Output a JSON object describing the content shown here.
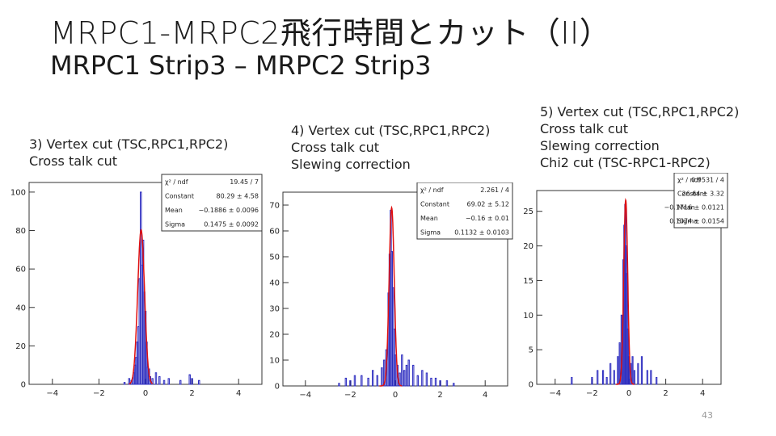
{
  "slide": {
    "title": "MRPC1-MRPC2飛行時間とカット（II）",
    "subtitle": "MRPC1 Strip3 – MRPC2 Strip3",
    "page_number": "43"
  },
  "panels": [
    {
      "caption": "3) Vertex cut (TSC,RPC1,RPC2)\nCross talk cut",
      "stats": [
        [
          "χ² / ndf",
          "19.45 / 7"
        ],
        [
          "Constant",
          "80.29 ± 4.58"
        ],
        [
          "Mean",
          "−0.1886 ± 0.0096"
        ],
        [
          "Sigma",
          "0.1475 ± 0.0092"
        ]
      ]
    },
    {
      "caption": "4) Vertex cut (TSC,RPC1,RPC2)\nCross talk cut\nSlewing correction",
      "stats": [
        [
          "χ² / ndf",
          "2.261 / 4"
        ],
        [
          "Constant",
          "69.02 ± 5.12"
        ],
        [
          "Mean",
          "−0.16 ± 0.01"
        ],
        [
          "Sigma",
          "0.1132 ± 0.0103"
        ]
      ]
    },
    {
      "caption": "5) Vertex cut (TSC,RPC1,RPC2)\nCross talk cut\nSlewing correction\nChi2 cut (TSC-RPC1-RPC2)",
      "stats": [
        [
          "χ² / ndf",
          "0.9531 / 4"
        ],
        [
          "Constant",
          "26.64 ± 3.32"
        ],
        [
          "Mean",
          "−0.1716 ± 0.0121"
        ],
        [
          "Sigma",
          "0.1074 ± 0.0154"
        ]
      ]
    }
  ],
  "colors": {
    "histogram": "#2b2bbf",
    "fit": "#e01010",
    "frame": "#333333"
  },
  "chart_data": [
    {
      "type": "line",
      "xlim": [
        -5,
        5
      ],
      "ylim": [
        0,
        105
      ],
      "xticks": [
        -4,
        -2,
        0,
        2,
        4
      ],
      "yticks": [
        0,
        20,
        40,
        60,
        80,
        100
      ],
      "bins": [
        [
          -0.9,
          1
        ],
        [
          -0.7,
          3
        ],
        [
          -0.6,
          2
        ],
        [
          -0.5,
          6
        ],
        [
          -0.45,
          10
        ],
        [
          -0.4,
          14
        ],
        [
          -0.35,
          22
        ],
        [
          -0.3,
          30
        ],
        [
          -0.25,
          55
        ],
        [
          -0.2,
          100
        ],
        [
          -0.15,
          62
        ],
        [
          -0.1,
          75
        ],
        [
          -0.05,
          48
        ],
        [
          0.0,
          38
        ],
        [
          0.05,
          22
        ],
        [
          0.1,
          9
        ],
        [
          0.15,
          8
        ],
        [
          0.2,
          4
        ],
        [
          0.3,
          3
        ],
        [
          0.45,
          6
        ],
        [
          0.6,
          4
        ],
        [
          0.8,
          2
        ],
        [
          1.0,
          3
        ],
        [
          1.5,
          2
        ],
        [
          1.9,
          5
        ],
        [
          2.0,
          3
        ],
        [
          2.3,
          2
        ]
      ],
      "fit": {
        "constant": 80.29,
        "mean": -0.1886,
        "sigma": 0.1475,
        "range": [
          -0.7,
          0.3
        ]
      }
    },
    {
      "type": "line",
      "xlim": [
        -5,
        5
      ],
      "ylim": [
        0,
        75
      ],
      "xticks": [
        -4,
        -2,
        0,
        2,
        4
      ],
      "yticks": [
        0,
        10,
        20,
        30,
        40,
        50,
        60,
        70
      ],
      "bins": [
        [
          -2.5,
          1
        ],
        [
          -2.2,
          3
        ],
        [
          -2.0,
          2
        ],
        [
          -1.8,
          4
        ],
        [
          -1.5,
          4
        ],
        [
          -1.2,
          3
        ],
        [
          -1.0,
          6
        ],
        [
          -0.8,
          4
        ],
        [
          -0.6,
          7
        ],
        [
          -0.5,
          10
        ],
        [
          -0.4,
          14
        ],
        [
          -0.3,
          36
        ],
        [
          -0.25,
          51
        ],
        [
          -0.2,
          68
        ],
        [
          -0.15,
          52
        ],
        [
          -0.1,
          38
        ],
        [
          -0.05,
          22
        ],
        [
          0.0,
          12
        ],
        [
          0.1,
          8
        ],
        [
          0.2,
          5
        ],
        [
          0.3,
          12
        ],
        [
          0.4,
          6
        ],
        [
          0.5,
          8
        ],
        [
          0.6,
          10
        ],
        [
          0.8,
          8
        ],
        [
          1.0,
          4
        ],
        [
          1.2,
          6
        ],
        [
          1.4,
          5
        ],
        [
          1.6,
          3
        ],
        [
          1.8,
          3
        ],
        [
          2.0,
          2
        ],
        [
          2.3,
          2
        ],
        [
          2.6,
          1
        ]
      ],
      "fit": {
        "constant": 69.02,
        "mean": -0.16,
        "sigma": 0.1132,
        "range": [
          -0.7,
          0.3
        ]
      }
    },
    {
      "type": "line",
      "xlim": [
        -5,
        5
      ],
      "ylim": [
        0,
        28
      ],
      "xticks": [
        -4,
        -2,
        0,
        2,
        4
      ],
      "yticks": [
        0,
        5,
        10,
        15,
        20,
        25
      ],
      "bins": [
        [
          -3.1,
          1
        ],
        [
          -2.0,
          1
        ],
        [
          -1.7,
          2
        ],
        [
          -1.4,
          2
        ],
        [
          -1.2,
          1
        ],
        [
          -1.0,
          3
        ],
        [
          -0.8,
          2
        ],
        [
          -0.6,
          4
        ],
        [
          -0.5,
          6
        ],
        [
          -0.4,
          10
        ],
        [
          -0.3,
          18
        ],
        [
          -0.25,
          23
        ],
        [
          -0.2,
          26
        ],
        [
          -0.15,
          20
        ],
        [
          -0.1,
          16
        ],
        [
          -0.05,
          8
        ],
        [
          0.0,
          4
        ],
        [
          0.1,
          3
        ],
        [
          0.2,
          4
        ],
        [
          0.3,
          2
        ],
        [
          0.5,
          3
        ],
        [
          0.7,
          4
        ],
        [
          1.0,
          2
        ],
        [
          1.2,
          2
        ],
        [
          1.5,
          1
        ]
      ],
      "fit": {
        "constant": 26.64,
        "mean": -0.1716,
        "sigma": 0.1074,
        "range": [
          -0.7,
          0.3
        ]
      }
    }
  ]
}
